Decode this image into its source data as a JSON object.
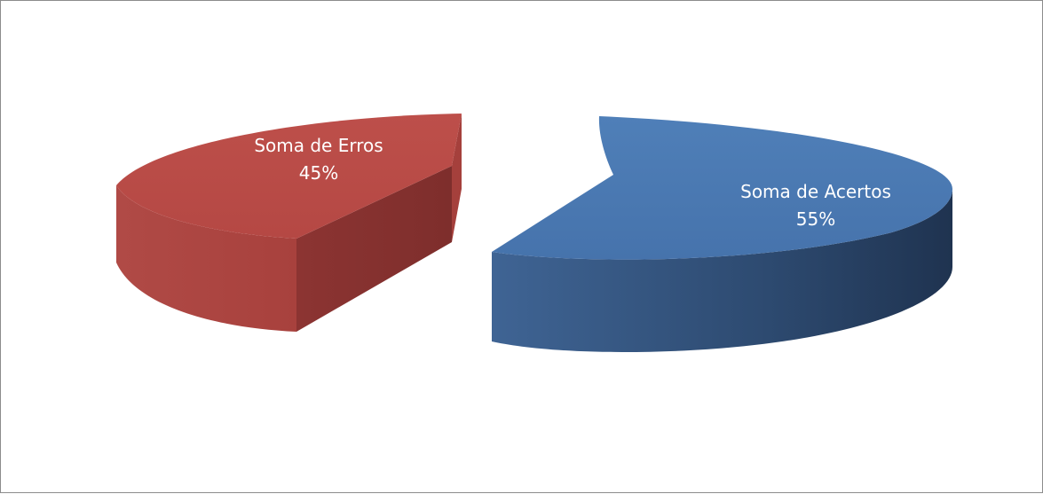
{
  "chart_data": {
    "type": "pie",
    "title": "",
    "exploded": true,
    "three_d": true,
    "slices": [
      {
        "label": "Soma de Erros",
        "percent_label": "45%",
        "value": 45,
        "color": "#B94B47"
      },
      {
        "label": "Soma de Acertos",
        "percent_label": "55%",
        "value": 55,
        "color": "#4A78B0"
      }
    ]
  }
}
